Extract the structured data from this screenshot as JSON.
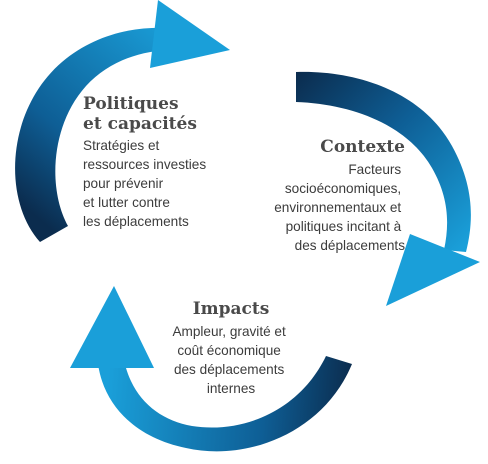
{
  "colors": {
    "arrow_light": "#1a9fd9",
    "arrow_dark": "#0b2c4e",
    "title_text": "#4a4a4a",
    "body_text": "#3c3c3c"
  },
  "nodes": {
    "politiques": {
      "title": [
        "Politiques",
        "et capacités"
      ],
      "description": [
        "Stratégies et",
        "ressources investies",
        "pour prévenir",
        "et lutter contre",
        "les déplacements"
      ]
    },
    "contexte": {
      "title": [
        "Contexte"
      ],
      "description": [
        "Facteurs",
        "socioéconomiques,",
        "environnementaux et",
        "politiques incitant à",
        "des déplacements"
      ]
    },
    "impacts": {
      "title": [
        "Impacts"
      ],
      "description": [
        "Ampleur, gravité et",
        "coût économique",
        "des déplacements",
        "internes"
      ]
    }
  }
}
